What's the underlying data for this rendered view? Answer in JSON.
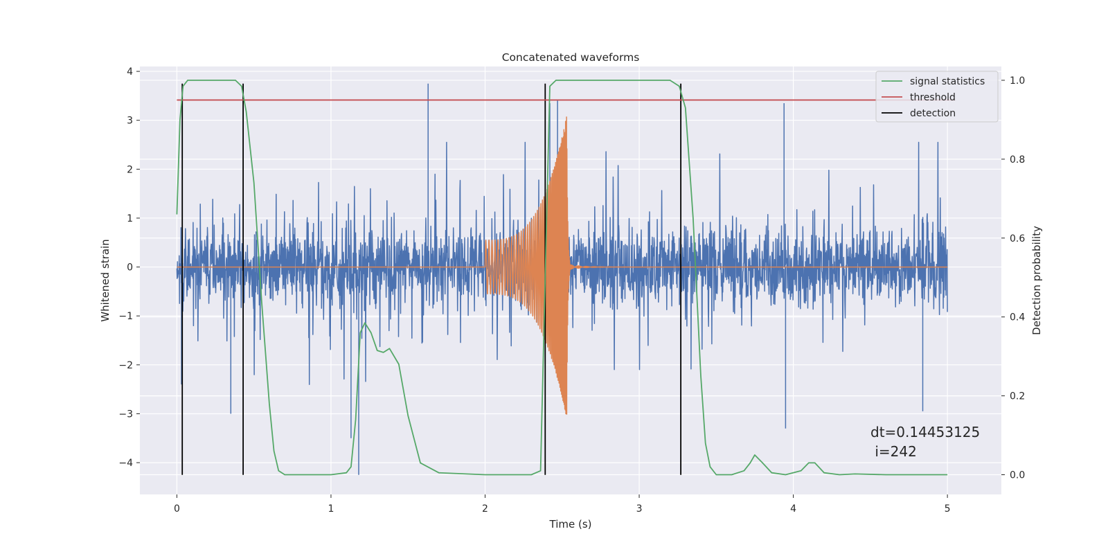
{
  "chart_data": {
    "type": "line",
    "title": "Concatenated waveforms",
    "xlabel": "Time (s)",
    "ylabel": "Whitened strain",
    "ylabel_right": "Detection probability",
    "xlim": [
      -0.24,
      5.35
    ],
    "ylim": [
      -4.65,
      4.1
    ],
    "ylim_right": [
      -0.05,
      1.035
    ],
    "xticks": [
      0,
      1,
      2,
      3,
      4,
      5
    ],
    "yticks": [
      -4,
      -3,
      -2,
      -1,
      0,
      1,
      2,
      3,
      4
    ],
    "yticks_right": [
      0.0,
      0.2,
      0.4,
      0.6,
      0.8,
      1.0
    ],
    "grid": true,
    "legend_position": "upper-right",
    "colors": {
      "axes_bg": "#eaeaf2",
      "grid": "#ffffff",
      "noise": "#4c72b0",
      "waveform": "#dd8452",
      "signal_statistics": "#55a868",
      "threshold": "#c44e52",
      "detection": "#000000"
    },
    "series": [
      {
        "name": "noise",
        "role": "whitened strain (left axis)",
        "x_range": [
          0,
          5
        ],
        "typical_amplitude": 1.3,
        "spike_range": [
          -4.25,
          3.75
        ]
      },
      {
        "name": "waveform",
        "role": "injected chirp (left axis)",
        "x_range": [
          2.0,
          2.55
        ],
        "start_amplitude": 0.55,
        "peak_time": 2.53,
        "peak_amplitude": 3.1,
        "trough_amplitude": -2.75
      },
      {
        "name": "signal statistics",
        "axis": "right",
        "x": [
          0.0,
          0.02,
          0.04,
          0.07,
          0.1,
          0.2,
          0.38,
          0.42,
          0.45,
          0.5,
          0.55,
          0.6,
          0.63,
          0.66,
          0.7,
          0.8,
          1.0,
          1.1,
          1.13,
          1.16,
          1.19,
          1.22,
          1.26,
          1.3,
          1.34,
          1.38,
          1.44,
          1.5,
          1.58,
          1.7,
          2.0,
          2.3,
          2.36,
          2.39,
          2.42,
          2.46,
          2.5,
          3.2,
          3.26,
          3.3,
          3.35,
          3.4,
          3.43,
          3.46,
          3.5,
          3.6,
          3.68,
          3.72,
          3.75,
          3.8,
          3.86,
          3.95,
          4.05,
          4.1,
          4.14,
          4.2,
          4.3,
          4.4,
          4.6,
          5.0
        ],
        "y": [
          0.66,
          0.9,
          0.985,
          1.0,
          1.0,
          1.0,
          1.0,
          0.985,
          0.92,
          0.74,
          0.44,
          0.18,
          0.06,
          0.01,
          0.0,
          0.0,
          0.0,
          0.005,
          0.02,
          0.14,
          0.36,
          0.385,
          0.36,
          0.315,
          0.31,
          0.32,
          0.28,
          0.15,
          0.03,
          0.005,
          0.0,
          0.0,
          0.01,
          0.5,
          0.985,
          1.0,
          1.0,
          1.0,
          0.985,
          0.93,
          0.65,
          0.25,
          0.08,
          0.02,
          0.0,
          0.0,
          0.01,
          0.03,
          0.05,
          0.03,
          0.005,
          0.0,
          0.01,
          0.03,
          0.03,
          0.005,
          0.0,
          0.002,
          0.0,
          0.0
        ]
      },
      {
        "name": "threshold",
        "axis": "right",
        "x": [
          0,
          5.05
        ],
        "y": [
          0.95,
          0.95
        ]
      },
      {
        "name": "detection",
        "axis": "left",
        "x": [
          0.035,
          0.43,
          2.39,
          3.27
        ],
        "ymin": -4.25,
        "ymax": 3.75
      }
    ],
    "legend": [
      "signal statistics",
      "threshold",
      "detection"
    ],
    "annotation": {
      "line1": "dt=0.14453125",
      "line2": " i=242"
    }
  }
}
